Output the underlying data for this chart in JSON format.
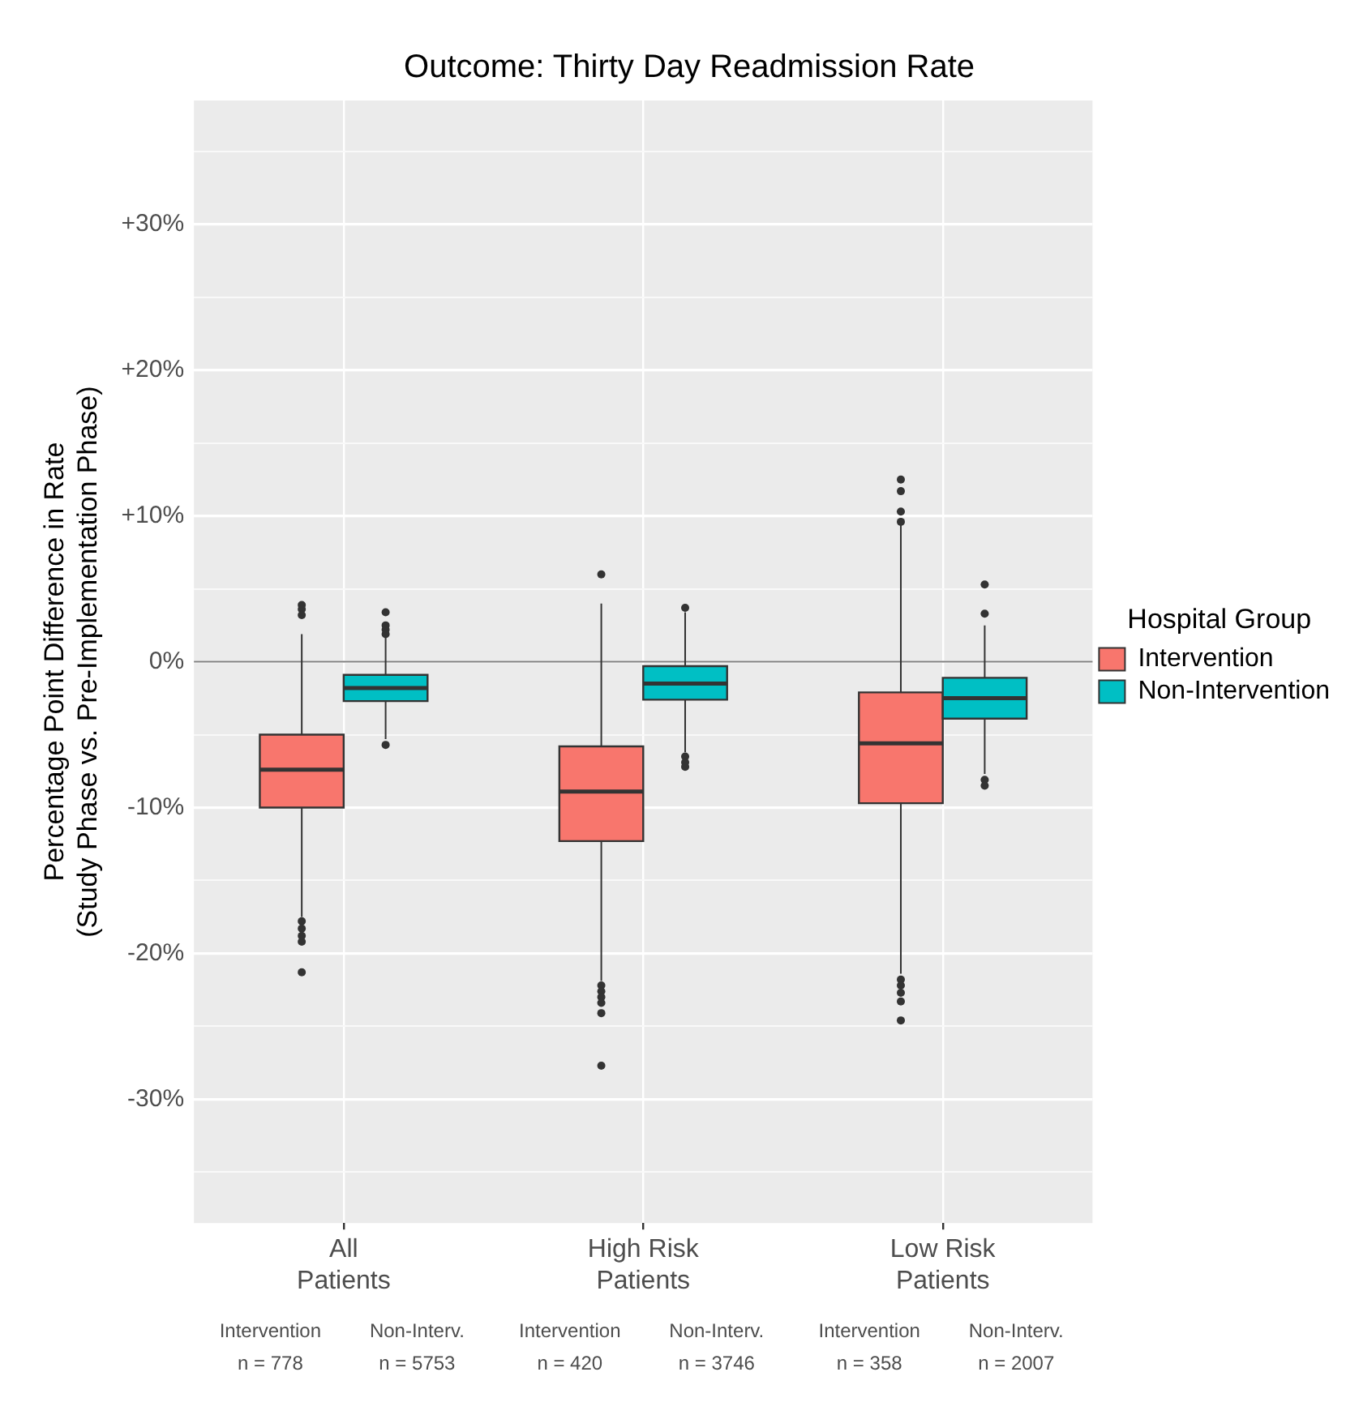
{
  "chart_data": {
    "type": "box",
    "title": "Outcome: Thirty Day Readmission Rate",
    "ylabel": "Percentage Point Difference in Rate\n(Study Phase vs. Pre-Implementation Phase)",
    "legend_title": "Hospital Group",
    "legend": "right",
    "grid": true,
    "categories": [
      "All\nPatients",
      "High Risk\nPatients",
      "Low Risk\nPatients"
    ],
    "series": [
      {
        "name": "Intervention",
        "color": "#f8766d",
        "boxes": [
          {
            "low": -17.5,
            "q1": -10.0,
            "median": -7.4,
            "q3": -5.0,
            "high": 1.9,
            "outliers": [
              3.9,
              3.6,
              3.2,
              -17.8,
              -18.3,
              -18.8,
              -19.2,
              -21.3
            ]
          },
          {
            "low": -21.9,
            "q1": -12.3,
            "median": -8.9,
            "q3": -5.8,
            "high": 4.0,
            "outliers": [
              6.0,
              -22.2,
              -22.6,
              -23.0,
              -23.4,
              -24.1,
              -27.7
            ]
          },
          {
            "low": -21.4,
            "q1": -9.7,
            "median": -5.6,
            "q3": -2.1,
            "high": 9.4,
            "outliers": [
              12.5,
              11.7,
              10.3,
              9.6,
              -21.8,
              -22.2,
              -22.7,
              -23.3,
              -24.6
            ]
          }
        ]
      },
      {
        "name": "Non-Intervention",
        "color": "#00bfc4",
        "boxes": [
          {
            "low": -5.3,
            "q1": -2.7,
            "median": -1.8,
            "q3": -0.9,
            "high": 1.7,
            "outliers": [
              3.4,
              2.5,
              2.2,
              1.9,
              -5.7
            ]
          },
          {
            "low": -6.2,
            "q1": -2.6,
            "median": -1.5,
            "q3": -0.3,
            "high": 3.4,
            "outliers": [
              3.7,
              -6.5,
              -6.9,
              -7.2
            ]
          },
          {
            "low": -7.7,
            "q1": -3.9,
            "median": -2.5,
            "q3": -1.1,
            "high": 2.5,
            "outliers": [
              5.3,
              3.3,
              -8.1,
              -8.5
            ]
          }
        ]
      }
    ],
    "ylim": [
      -38.5,
      38.5
    ],
    "yticks": [
      {
        "value": -35,
        "label": null
      },
      {
        "value": -30,
        "label": "-30%"
      },
      {
        "value": -25,
        "label": null
      },
      {
        "value": -20,
        "label": "-20%"
      },
      {
        "value": -15,
        "label": null
      },
      {
        "value": -10,
        "label": "-10%"
      },
      {
        "value": -5,
        "label": null
      },
      {
        "value": 0,
        "label": "0%"
      },
      {
        "value": 5,
        "label": null
      },
      {
        "value": 10,
        "label": "+10%"
      },
      {
        "value": 15,
        "label": null
      },
      {
        "value": 20,
        "label": "+20%"
      },
      {
        "value": 25,
        "label": null
      },
      {
        "value": 30,
        "label": "+30%"
      },
      {
        "value": 35,
        "label": null
      }
    ],
    "ref_lines": [
      {
        "axis": "y",
        "value": 0,
        "color": "#808080"
      }
    ],
    "annotations": [
      "Intervention\nn = 778",
      "Non-Interv.\nn = 5753",
      "Intervention\nn = 420",
      "Non-Interv.\nn = 3746",
      "Intervention\nn = 358",
      "Non-Interv.\nn = 2007"
    ]
  }
}
